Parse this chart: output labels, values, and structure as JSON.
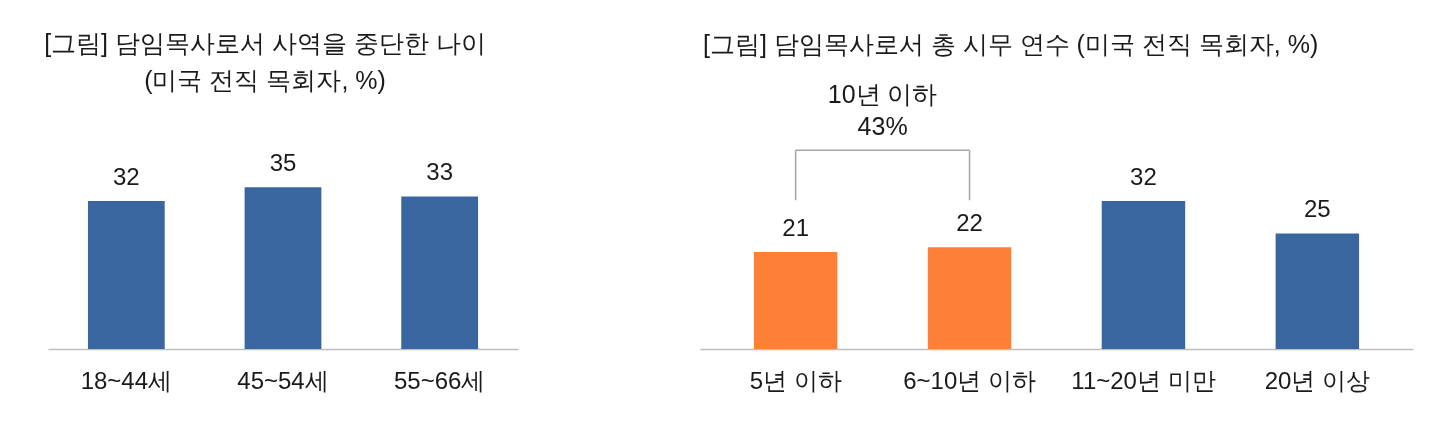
{
  "chart_data": [
    {
      "type": "bar",
      "title": "[그림] 담임목사로서 사역을 중단한 나이\n(미국 전직 목회자, %)",
      "categories": [
        "18~44세",
        "45~54세",
        "55~66세"
      ],
      "values": [
        32,
        35,
        33
      ],
      "color": "#3a66a0",
      "data_labels": true
    },
    {
      "type": "bar",
      "title": "[그림] 담임목사로서 총 시무 연수 (미국 전직 목회자, %)",
      "categories": [
        "5년 이하",
        "6~10년 이하",
        "11~20년 미만",
        "20년 이상"
      ],
      "values": [
        21,
        22,
        32,
        25
      ],
      "colors": [
        "#fd8036",
        "#fd8036",
        "#3a66a0",
        "#3a66a0"
      ],
      "data_labels": true,
      "annotations": [
        "10년 이하\n43%"
      ]
    }
  ]
}
